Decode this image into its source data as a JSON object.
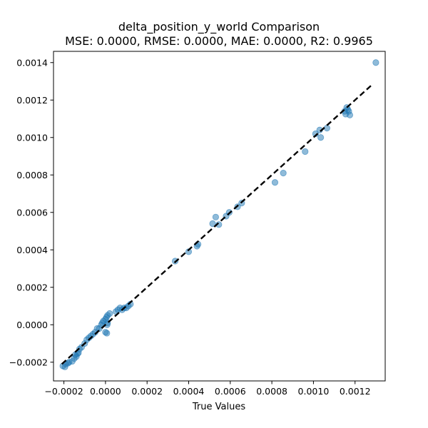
{
  "chart_data": {
    "type": "scatter",
    "title": "delta_position_y_world Comparison",
    "subtitle": "MSE: 0.0000, RMSE: 0.0000, MAE: 0.0000, R2: 0.9965",
    "xlabel": "True Values",
    "ylabel": "",
    "xlim": [
      -0.00025,
      0.001345
    ],
    "ylim": [
      -0.0003,
      0.00146
    ],
    "x_ticks": [
      -0.0002,
      0.0,
      0.0002,
      0.0004,
      0.0006,
      0.0008,
      0.001,
      0.0012
    ],
    "x_tick_labels": [
      "−0.0002",
      "0.0000",
      "0.0002",
      "0.0004",
      "0.0006",
      "0.0008",
      "0.0010",
      "0.0012"
    ],
    "y_ticks": [
      -0.0002,
      0.0,
      0.0002,
      0.0004,
      0.0006,
      0.0008,
      0.001,
      0.0012,
      0.0014
    ],
    "y_tick_labels": [
      "−0.0002",
      "0.0000",
      "0.0002",
      "0.0004",
      "0.0006",
      "0.0008",
      "0.0010",
      "0.0012",
      "0.0014"
    ],
    "grid": false,
    "point_color": "#1f77b4",
    "line_color": "#000000",
    "reference_line": {
      "style": "dashed",
      "x": [
        -0.00021,
        0.00128
      ],
      "y": [
        -0.00021,
        0.00128
      ]
    },
    "points": [
      [
        -0.000205,
        -0.00022
      ],
      [
        -0.000195,
        -0.000225
      ],
      [
        -0.00019,
        -0.00021
      ],
      [
        -0.00018,
        -0.000205
      ],
      [
        -0.000175,
        -0.0002
      ],
      [
        -0.00016,
        -0.000195
      ],
      [
        -0.00015,
        -0.00018
      ],
      [
        -0.000145,
        -0.00016
      ],
      [
        -0.00014,
        -0.00017
      ],
      [
        -0.000135,
        -0.000155
      ],
      [
        -0.00013,
        -0.00015
      ],
      [
        -0.000125,
        -0.00013
      ],
      [
        -0.000115,
        -0.00012
      ],
      [
        -0.0001,
        -0.0001
      ],
      [
        -9e-05,
        -8e-05
      ],
      [
        -8e-05,
        -7e-05
      ],
      [
        -7e-05,
        -6e-05
      ],
      [
        -6e-05,
        -5e-05
      ],
      [
        -5e-05,
        -4e-05
      ],
      [
        -4e-05,
        -2e-05
      ],
      [
        -3e-05,
        -2e-05
      ],
      [
        -2e-05,
        0.0
      ],
      [
        -1.5e-05,
        1e-05
      ],
      [
        -1e-05,
        2e-05
      ],
      [
        0.0,
        3e-05
      ],
      [
        5e-06,
        4e-05
      ],
      [
        1e-05,
        5e-05
      ],
      [
        2e-05,
        6e-05
      ],
      [
        0.0,
        -4e-05
      ],
      [
        6.5e-06,
        -4.5e-05
      ],
      [
        8e-06,
        0.0
      ],
      [
        1e-05,
        1e-05
      ],
      [
        5e-05,
        7e-05
      ],
      [
        6e-05,
        8e-05
      ],
      [
        7e-05,
        9e-05
      ],
      [
        8e-05,
        8e-05
      ],
      [
        9e-05,
        9e-05
      ],
      [
        0.0001,
        9e-05
      ],
      [
        0.00011,
        0.0001
      ],
      [
        0.00012,
        0.00011
      ],
      [
        0.000335,
        0.00034
      ],
      [
        0.0004,
        0.00039
      ],
      [
        0.00044,
        0.00042
      ],
      [
        0.000445,
        0.00043
      ],
      [
        0.000515,
        0.00054
      ],
      [
        0.00053,
        0.000575
      ],
      [
        0.000545,
        0.000535
      ],
      [
        0.00058,
        0.00058
      ],
      [
        0.000595,
        0.0006
      ],
      [
        0.000635,
        0.00063
      ],
      [
        0.000655,
        0.00065
      ],
      [
        0.000815,
        0.00076
      ],
      [
        0.000855,
        0.00081
      ],
      [
        0.00096,
        0.000925
      ],
      [
        0.00101,
        0.00102
      ],
      [
        0.00103,
        0.00104
      ],
      [
        0.001035,
        0.001
      ],
      [
        0.001065,
        0.00105
      ],
      [
        0.00115,
        0.00114
      ],
      [
        0.001155,
        0.001125
      ],
      [
        0.00116,
        0.00116
      ],
      [
        0.001165,
        0.00115
      ],
      [
        0.00117,
        0.00114
      ],
      [
        0.001175,
        0.00112
      ],
      [
        0.0013,
        0.0014
      ]
    ]
  }
}
